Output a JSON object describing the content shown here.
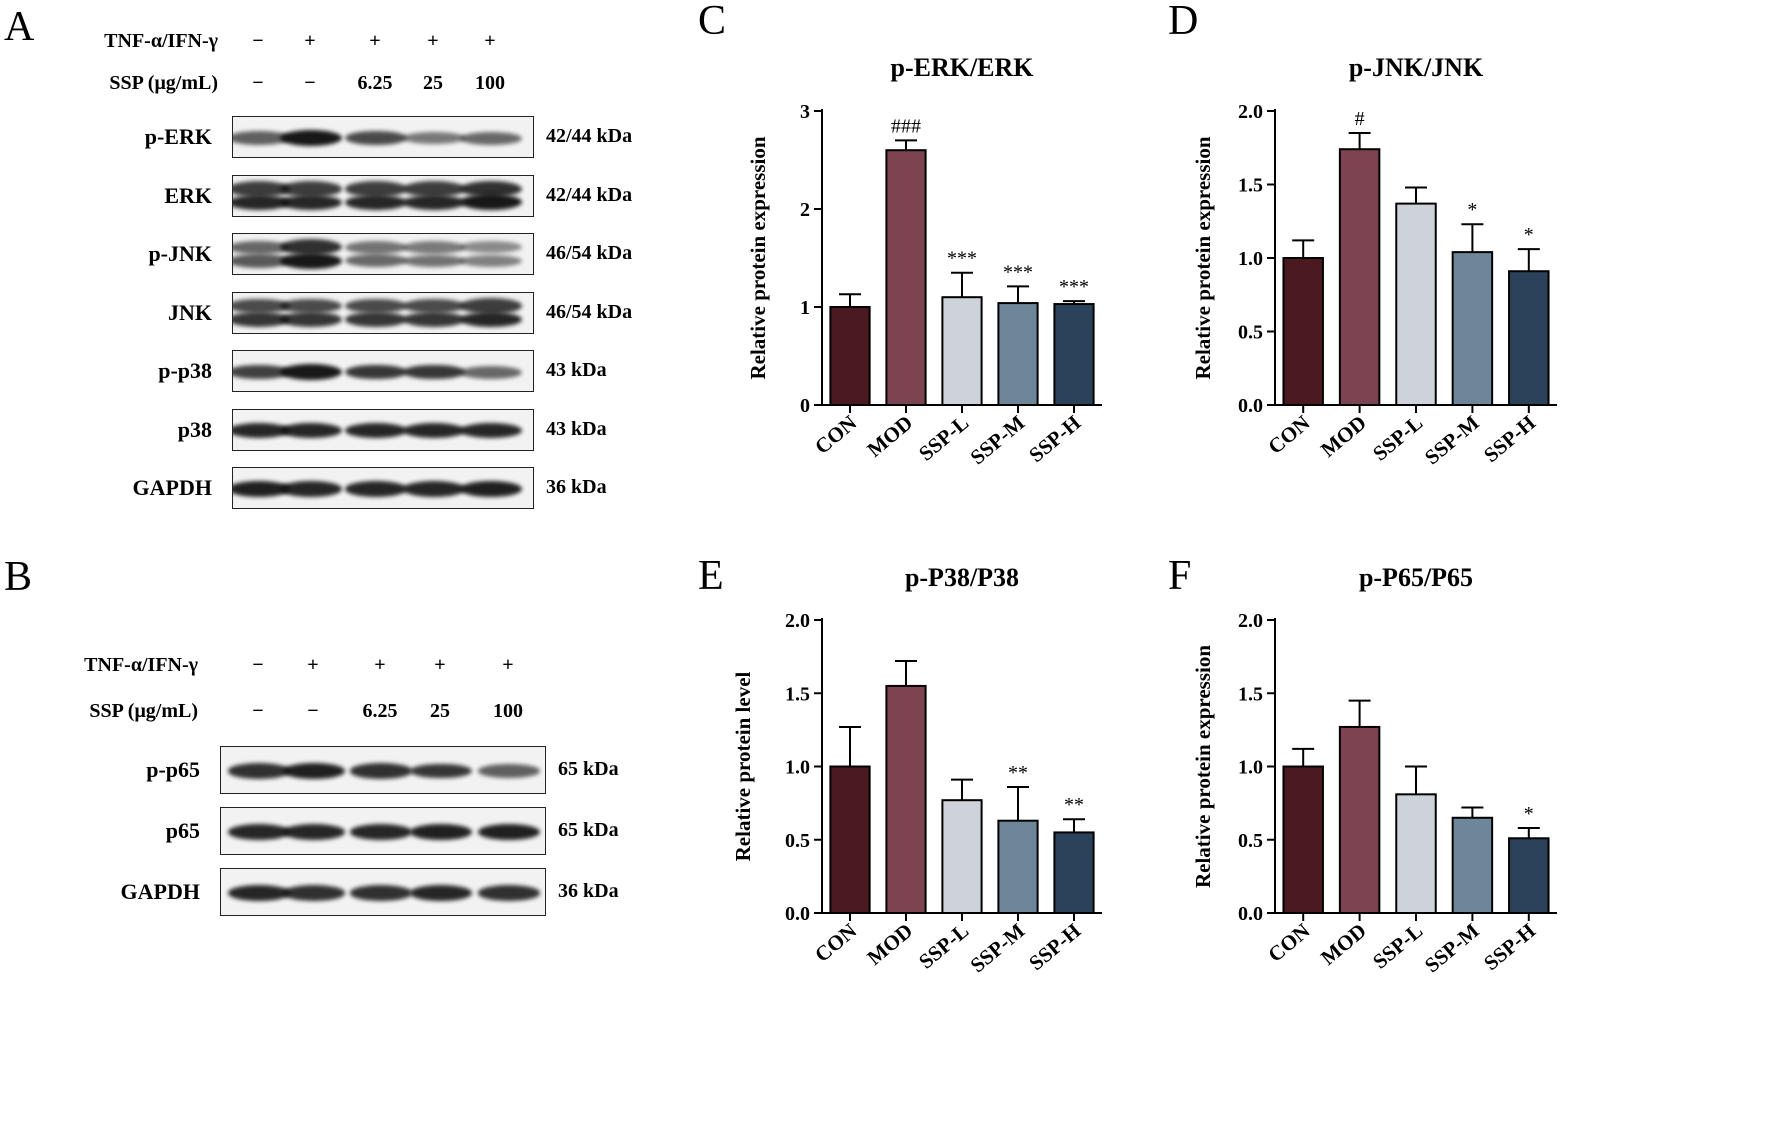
{
  "panels": {
    "A": {
      "letter": "A",
      "row1_label": "TNF-α/IFN-γ",
      "row1_values": [
        "−",
        "+",
        "+",
        "+",
        "+"
      ],
      "row2_label": "SSP (μg/mL)",
      "row2_values": [
        "−",
        "−",
        "6.25",
        "25",
        "100"
      ],
      "blots": [
        {
          "label": "p-ERK",
          "size": "42/44 kDa",
          "intensity": [
            0.55,
            1.0,
            0.7,
            0.4,
            0.5
          ],
          "double": false
        },
        {
          "label": "ERK",
          "size": "42/44 kDa",
          "intensity": [
            0.9,
            0.9,
            0.9,
            0.9,
            1.0
          ],
          "double": true
        },
        {
          "label": "p-JNK",
          "size": "46/54 kDa",
          "intensity": [
            0.6,
            1.0,
            0.5,
            0.45,
            0.35
          ],
          "double": true
        },
        {
          "label": "JNK",
          "size": "46/54 kDa",
          "intensity": [
            0.8,
            0.8,
            0.8,
            0.8,
            0.9
          ],
          "double": true
        },
        {
          "label": "p-p38",
          "size": "43 kDa",
          "intensity": [
            0.75,
            1.0,
            0.8,
            0.8,
            0.5
          ],
          "double": false
        },
        {
          "label": "p38",
          "size": "43 kDa",
          "intensity": [
            0.9,
            0.9,
            0.9,
            0.9,
            0.9
          ],
          "double": false
        },
        {
          "label": "GAPDH",
          "size": "36 kDa",
          "intensity": [
            0.95,
            0.9,
            0.9,
            0.9,
            0.95
          ],
          "double": false
        }
      ]
    },
    "B": {
      "letter": "B",
      "row1_label": "TNF-α/IFN-γ",
      "row1_values": [
        "−",
        "+",
        "+",
        "+",
        "+"
      ],
      "row2_label": "SSP (μg/mL)",
      "row2_values": [
        "−",
        "−",
        "6.25",
        "25",
        "100"
      ],
      "blots": [
        {
          "label": "p-p65",
          "size": "65 kDa",
          "intensity": [
            0.85,
            0.95,
            0.85,
            0.8,
            0.55
          ],
          "double": false
        },
        {
          "label": "p65",
          "size": "65 kDa",
          "intensity": [
            0.9,
            0.9,
            0.9,
            0.95,
            0.95
          ],
          "double": false
        },
        {
          "label": "GAPDH",
          "size": "36 kDa",
          "intensity": [
            0.9,
            0.85,
            0.85,
            0.9,
            0.85
          ],
          "double": false
        }
      ]
    }
  },
  "colors": [
    "#4a1a20",
    "#7d4350",
    "#cdd3d9",
    "#6d8799",
    "#2b435a"
  ],
  "chart_data": [
    {
      "panel": "C",
      "type": "bar",
      "title": "p-ERK/ERK",
      "ylabel": "Relative protein expression",
      "categories": [
        "CON",
        "MOD",
        "SSP-L",
        "SSP-M",
        "SSP-H"
      ],
      "values": [
        1.0,
        2.6,
        1.1,
        1.04,
        1.03
      ],
      "errors": [
        0.13,
        0.1,
        0.25,
        0.17,
        0.03
      ],
      "annotations": [
        "",
        "###",
        "***",
        "***",
        "***"
      ],
      "ylim": [
        0,
        3
      ],
      "yticks": [
        "0",
        "1",
        "2",
        "3"
      ],
      "tick_values": [
        0,
        1,
        2,
        3
      ]
    },
    {
      "panel": "D",
      "type": "bar",
      "title": "p-JNK/JNK",
      "ylabel": "Relative protein expression",
      "categories": [
        "CON",
        "MOD",
        "SSP-L",
        "SSP-M",
        "SSP-H"
      ],
      "values": [
        1.0,
        1.74,
        1.37,
        1.04,
        0.91
      ],
      "errors": [
        0.12,
        0.11,
        0.11,
        0.19,
        0.15
      ],
      "annotations": [
        "",
        "#",
        "",
        "*",
        "*"
      ],
      "ylim": [
        0,
        2
      ],
      "yticks": [
        "0.0",
        "0.5",
        "1.0",
        "1.5",
        "2.0"
      ],
      "tick_values": [
        0,
        0.5,
        1,
        1.5,
        2
      ]
    },
    {
      "panel": "E",
      "type": "bar",
      "title": "p-P38/P38",
      "ylabel": "Relative protein level",
      "categories": [
        "CON",
        "MOD",
        "SSP-L",
        "SSP-M",
        "SSP-H"
      ],
      "values": [
        1.0,
        1.55,
        0.77,
        0.63,
        0.55
      ],
      "errors": [
        0.27,
        0.17,
        0.14,
        0.23,
        0.09
      ],
      "annotations": [
        "",
        "",
        "",
        "**",
        "**"
      ],
      "ylim": [
        0,
        2
      ],
      "yticks": [
        "0.0",
        "0.5",
        "1.0",
        "1.5",
        "2.0"
      ],
      "tick_values": [
        0,
        0.5,
        1,
        1.5,
        2
      ]
    },
    {
      "panel": "F",
      "type": "bar",
      "title": "p-P65/P65",
      "ylabel": "Relative protein expression",
      "categories": [
        "CON",
        "MOD",
        "SSP-L",
        "SSP-M",
        "SSP-H"
      ],
      "values": [
        1.0,
        1.27,
        0.81,
        0.65,
        0.51
      ],
      "errors": [
        0.12,
        0.18,
        0.19,
        0.07,
        0.07
      ],
      "annotations": [
        "",
        "",
        "",
        "",
        "*"
      ],
      "ylim": [
        0,
        2
      ],
      "yticks": [
        "0.0",
        "0.5",
        "1.0",
        "1.5",
        "2.0"
      ],
      "tick_values": [
        0,
        0.5,
        1,
        1.5,
        2
      ]
    }
  ]
}
